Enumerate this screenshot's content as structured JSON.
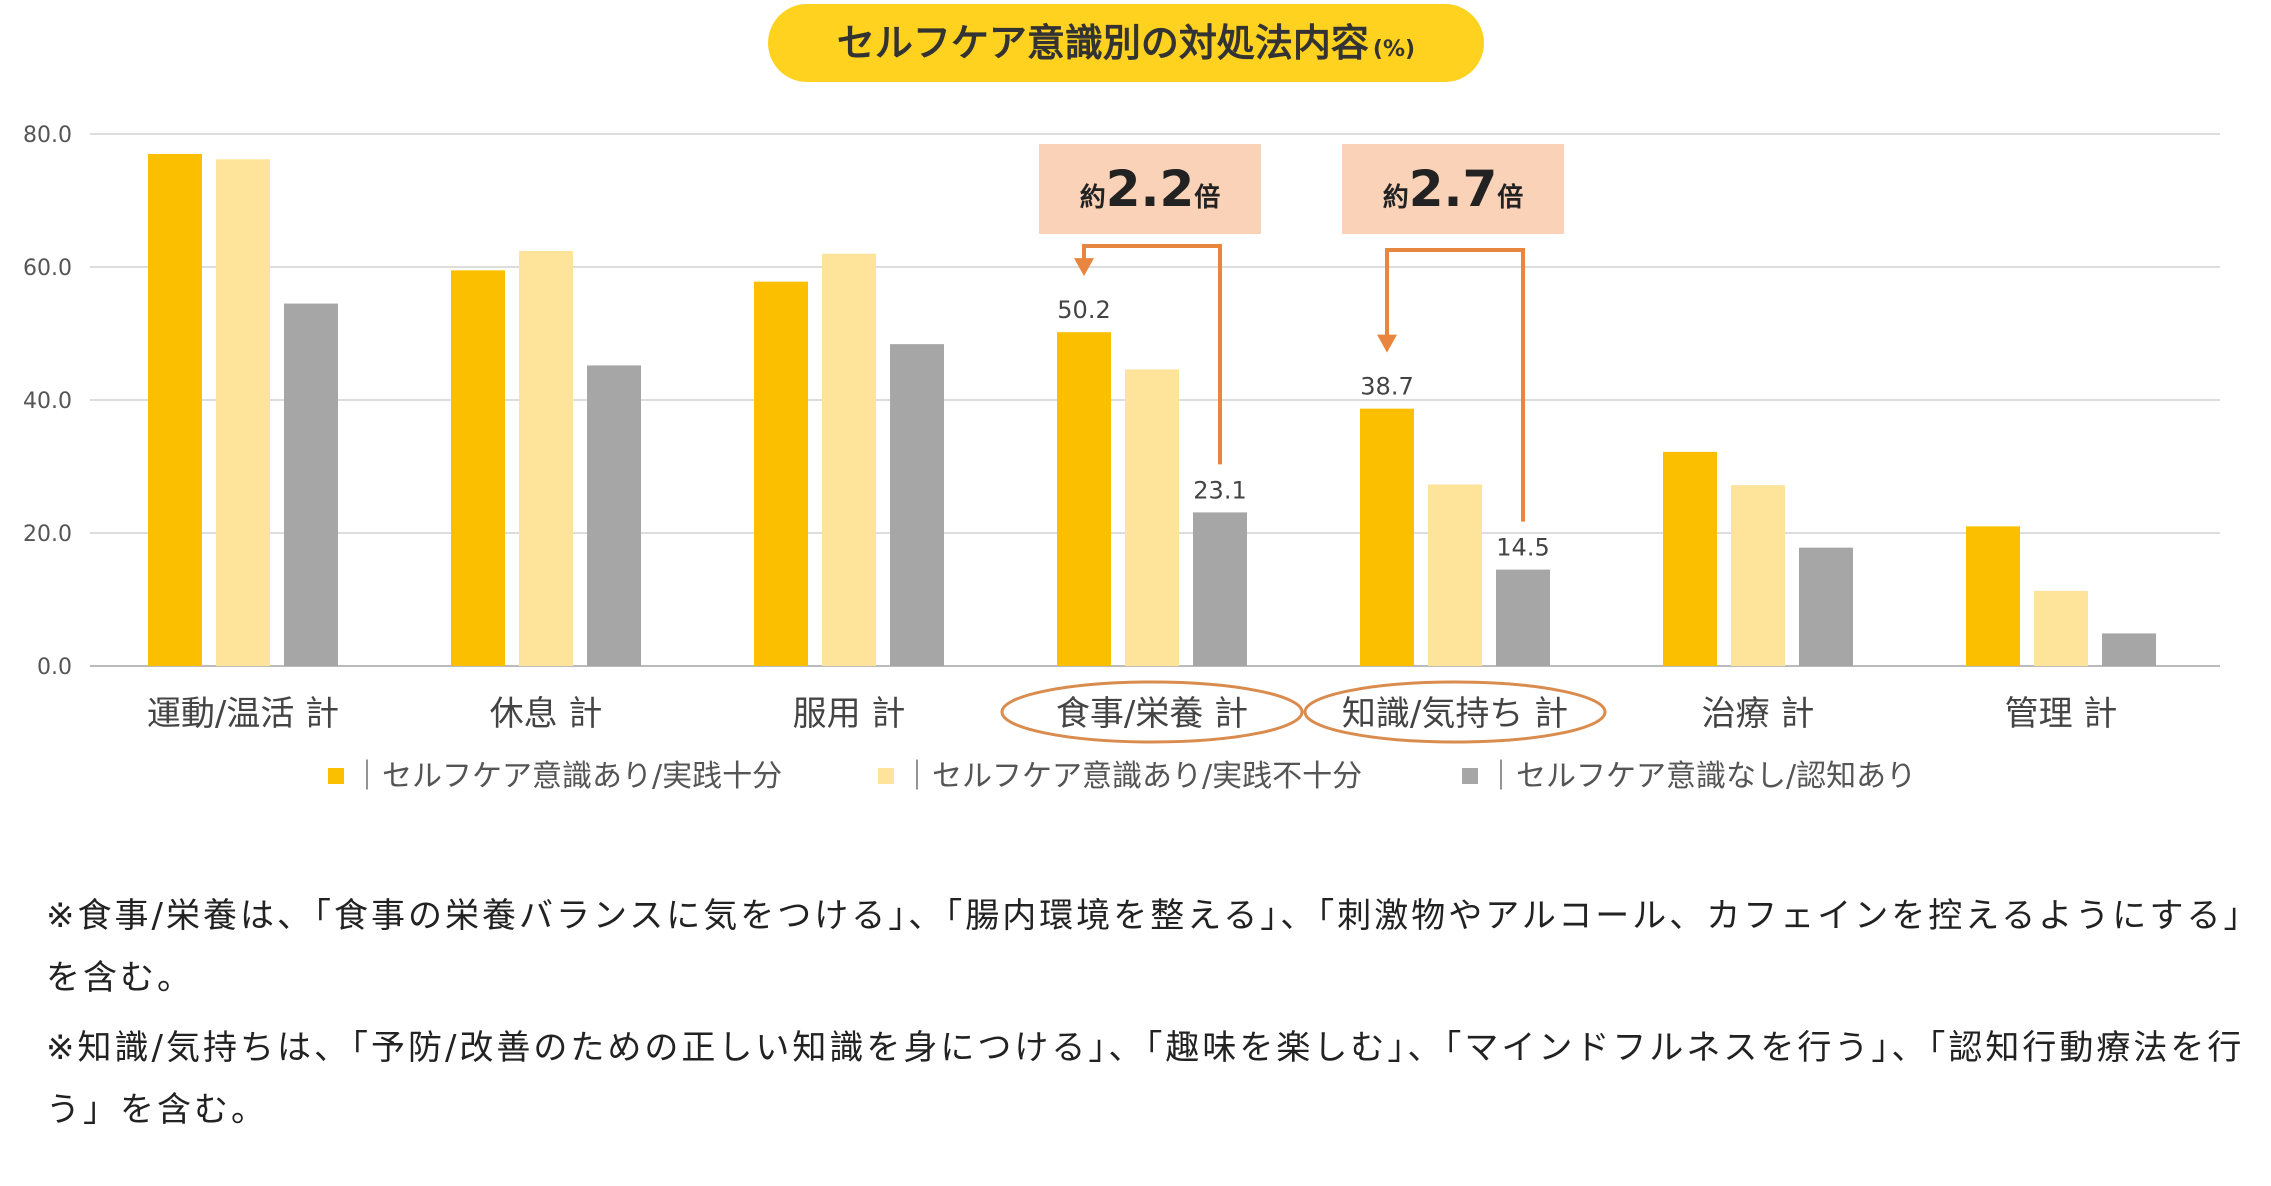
{
  "chart_data": {
    "type": "bar",
    "title": "セルフケア意識別の対処法内容",
    "title_unit": "(%)",
    "categories": [
      "運動/温活 計",
      "休息 計",
      "服用 計",
      "食事/栄養 計",
      "知識/気持ち 計",
      "治療 計",
      "管理 計"
    ],
    "highlighted_categories": [
      "食事/栄養 計",
      "知識/気持ち 計"
    ],
    "series": [
      {
        "name": "｜セルフケア意識あり/実践十分",
        "color": "#FBBF00",
        "values": [
          77.0,
          59.5,
          57.8,
          50.2,
          38.7,
          32.2,
          21.0
        ]
      },
      {
        "name": "｜セルフケア意識あり/実践不十分",
        "color": "#FDE49A",
        "values": [
          76.2,
          62.4,
          62.0,
          44.6,
          27.3,
          27.2,
          11.3
        ]
      },
      {
        "name": "｜セルフケア意識なし/認知あり",
        "color": "#A6A6A6",
        "values": [
          54.5,
          45.2,
          48.4,
          23.1,
          14.5,
          17.8,
          4.9
        ]
      }
    ],
    "data_labels": [
      {
        "category_index": 3,
        "series_index": 0,
        "text": "50.2"
      },
      {
        "category_index": 3,
        "series_index": 2,
        "text": "23.1"
      },
      {
        "category_index": 4,
        "series_index": 0,
        "text": "38.7"
      },
      {
        "category_index": 4,
        "series_index": 2,
        "text": "14.5"
      }
    ],
    "callouts": [
      {
        "category_index": 3,
        "prefix": "約",
        "value": "2.2",
        "suffix": "倍"
      },
      {
        "category_index": 4,
        "prefix": "約",
        "value": "2.7",
        "suffix": "倍"
      }
    ],
    "ylim": [
      0,
      80
    ],
    "yticks": [
      "0.0",
      "20.0",
      "40.0",
      "60.0",
      "80.0"
    ],
    "ytick_values": [
      0,
      20,
      40,
      60,
      80
    ],
    "grid": true,
    "legend_position": "bottom",
    "xlabel": "",
    "ylabel": ""
  },
  "notes": [
    "※食事/栄養は、「食事の栄養バランスに気をつける」、「腸内環境を整える」、「刺激物やアルコール、カフェインを控えるようにする」を含む。",
    "※知識/気持ちは、「予防/改善のための正しい知識を身につける」、「趣味を楽しむ」、「マインドフルネスを行う」、「認知行動療法を行う」を含む。"
  ],
  "colors": {
    "title_pill": "#FFD21F",
    "callout_box": "#F9D2B8",
    "arrow": "#E8863F",
    "highlight_ring": "#D98C4E",
    "grid": "#DDDDDD"
  }
}
